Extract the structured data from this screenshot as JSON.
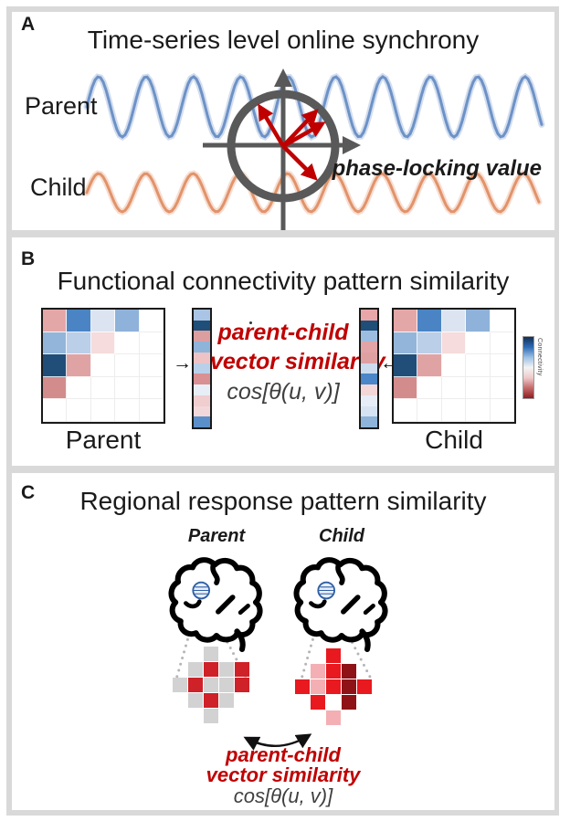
{
  "colors": {
    "frame": "#d9d9d9",
    "accent_red": "#c00000",
    "axis_gray": "#595959",
    "text": "#1a1a1a",
    "formula_gray": "#3f3f3f",
    "dotted_gray": "#b5b5b5",
    "roi_blue": "#2e5fa3"
  },
  "panels": {
    "a": {
      "label": "A",
      "title": "Time-series level online synchrony",
      "parent_label": "Parent",
      "child_label": "Child",
      "annotation": "phase-locking value",
      "waves": {
        "parent": {
          "color": "#6d92c7",
          "amplitude": 33,
          "cycles": 9.6
        },
        "child": {
          "color": "#e2936a",
          "amplitude": 21,
          "cycles": 9.6
        }
      }
    },
    "b": {
      "label": "B",
      "title": "Functional connectivity pattern similarity",
      "parent_label": "Parent",
      "child_label": "Child",
      "similarity_line1": "parent-child",
      "similarity_line2": "vector similarity",
      "formula": "cos[θ(u, v)]",
      "arrow_right": "→",
      "arrow_left": "←",
      "colorbar_label": "Connectivity",
      "matrix": [
        [
          "#e4a7a7",
          "#4a84c4",
          "#dbe4f0",
          "#8fb2da",
          "#ffffff"
        ],
        [
          "#93b5d9",
          "#bccfe8",
          "#f6dcdc",
          "#ffffff",
          "#ffffff"
        ],
        [
          "#214e78",
          "#e0a3a3",
          "#ffffff",
          "#ffffff",
          "#ffffff"
        ],
        [
          "#d28c8c",
          "#ffffff",
          "#ffffff",
          "#ffffff",
          "#ffffff"
        ],
        [
          "#ffffff",
          "#ffffff",
          "#ffffff",
          "#ffffff",
          "#ffffff"
        ]
      ],
      "parent_vector": [
        "#a9c4e4",
        "#1f4e79",
        "#dd9ea0",
        "#8fb4da",
        "#eec3c5",
        "#b9d0ea",
        "#d89093",
        "#e8eef6",
        "#f0cdcf",
        "#f2d8da",
        "#5b8fc9"
      ],
      "child_vector": [
        "#e8a6a8",
        "#1f4e79",
        "#9dbde0",
        "#e2a4a6",
        "#dfa0a2",
        "#ccdcee",
        "#4a86c8",
        "#f2d6d8",
        "#e6edf6",
        "#d6e3f2",
        "#8fb4da"
      ],
      "colorbar_colors": [
        "#142f54",
        "#2e6cb5",
        "#9dc0e4",
        "#f4f4f4",
        "#eecaca",
        "#c46a6a",
        "#8e1e22"
      ]
    },
    "c": {
      "label": "C",
      "title": "Regional response pattern similarity",
      "parent_label": "Parent",
      "child_label": "Child",
      "similarity_line1": "parent-child",
      "similarity_line2": "vector similarity",
      "formula": "cos[θ(u, v)]",
      "grid_colors": {
        "gray": "#d2d2d2",
        "red": "#cf2128",
        "bright": "#e8191f",
        "dark": "#8e1216",
        "pink": "#f4afb4"
      },
      "parent_grid": [
        [
          null,
          null,
          "gray",
          null,
          null
        ],
        [
          null,
          "gray",
          "red",
          "gray",
          "red"
        ],
        [
          "gray",
          "red",
          "gray",
          "gray",
          "red"
        ],
        [
          null,
          "gray",
          "red",
          "gray",
          null
        ],
        [
          null,
          null,
          "gray",
          null,
          null
        ]
      ],
      "child_grid": [
        [
          null,
          null,
          "bright",
          null,
          null
        ],
        [
          null,
          "pink",
          "bright",
          "dark",
          null
        ],
        [
          "bright",
          "pink",
          "bright",
          "dark",
          "bright"
        ],
        [
          null,
          "bright",
          null,
          "dark",
          null
        ],
        [
          null,
          null,
          "pink",
          null,
          null
        ]
      ]
    }
  }
}
